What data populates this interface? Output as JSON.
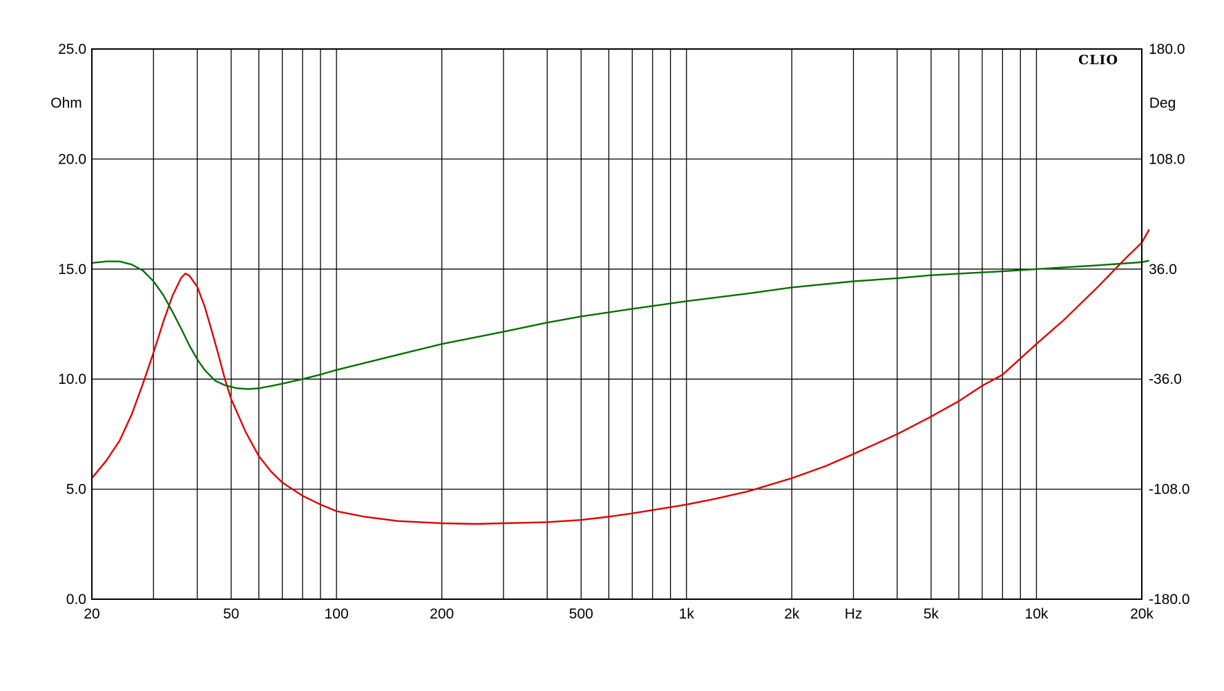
{
  "chart_data": {
    "type": "line",
    "brand": "CLIO",
    "x_axis": {
      "scale": "log",
      "range": [
        20,
        20000
      ],
      "unit_label": "Hz",
      "unit_label_position": 3000,
      "tick_labels": [
        {
          "value": 20,
          "label": "20"
        },
        {
          "value": 50,
          "label": "50"
        },
        {
          "value": 100,
          "label": "100"
        },
        {
          "value": 200,
          "label": "200"
        },
        {
          "value": 500,
          "label": "500"
        },
        {
          "value": 1000,
          "label": "1k"
        },
        {
          "value": 2000,
          "label": "2k"
        },
        {
          "value": 5000,
          "label": "5k"
        },
        {
          "value": 10000,
          "label": "10k"
        },
        {
          "value": 20000,
          "label": "20k"
        }
      ],
      "gridlines": [
        20,
        30,
        40,
        50,
        60,
        70,
        80,
        90,
        100,
        200,
        300,
        400,
        500,
        600,
        700,
        800,
        900,
        1000,
        2000,
        3000,
        4000,
        5000,
        6000,
        7000,
        8000,
        9000,
        10000,
        20000
      ]
    },
    "y_left": {
      "unit": "Ohm",
      "range": [
        0,
        25
      ],
      "ticks": [
        {
          "value": 0,
          "label": "0.0"
        },
        {
          "value": 5,
          "label": "5.0"
        },
        {
          "value": 10,
          "label": "10.0"
        },
        {
          "value": 15,
          "label": "15.0"
        },
        {
          "value": 20,
          "label": "20.0"
        },
        {
          "value": 25,
          "label": "25.0"
        }
      ]
    },
    "y_right": {
      "unit": "Deg",
      "range": [
        -180,
        180
      ],
      "ticks": [
        {
          "value": -180,
          "label": "-180.0"
        },
        {
          "value": -108,
          "label": "-108.0"
        },
        {
          "value": -36,
          "label": "-36.0"
        },
        {
          "value": 36,
          "label": "36.0"
        },
        {
          "value": 108,
          "label": "108.0"
        },
        {
          "value": 180,
          "label": "180.0"
        }
      ]
    },
    "grid": true,
    "series": [
      {
        "axis": "left",
        "color": "#e00000",
        "points": [
          [
            20,
            5.5
          ],
          [
            22,
            6.3
          ],
          [
            24,
            7.2
          ],
          [
            26,
            8.4
          ],
          [
            28,
            9.8
          ],
          [
            30,
            11.2
          ],
          [
            32,
            12.6
          ],
          [
            34,
            13.8
          ],
          [
            36,
            14.6
          ],
          [
            37,
            14.8
          ],
          [
            38,
            14.7
          ],
          [
            40,
            14.2
          ],
          [
            42,
            13.3
          ],
          [
            44,
            12.2
          ],
          [
            46,
            11.1
          ],
          [
            48,
            10.0
          ],
          [
            50,
            9.1
          ],
          [
            55,
            7.6
          ],
          [
            60,
            6.5
          ],
          [
            65,
            5.8
          ],
          [
            70,
            5.3
          ],
          [
            80,
            4.7
          ],
          [
            90,
            4.3
          ],
          [
            100,
            4.0
          ],
          [
            120,
            3.75
          ],
          [
            150,
            3.55
          ],
          [
            200,
            3.45
          ],
          [
            250,
            3.42
          ],
          [
            300,
            3.45
          ],
          [
            400,
            3.5
          ],
          [
            500,
            3.6
          ],
          [
            600,
            3.75
          ],
          [
            700,
            3.9
          ],
          [
            800,
            4.05
          ],
          [
            1000,
            4.3
          ],
          [
            1200,
            4.55
          ],
          [
            1500,
            4.9
          ],
          [
            2000,
            5.5
          ],
          [
            2500,
            6.05
          ],
          [
            3000,
            6.6
          ],
          [
            4000,
            7.5
          ],
          [
            5000,
            8.3
          ],
          [
            6000,
            9.0
          ],
          [
            7000,
            9.7
          ],
          [
            8000,
            10.2
          ],
          [
            10000,
            11.6
          ],
          [
            12000,
            12.7
          ],
          [
            15000,
            14.2
          ],
          [
            18000,
            15.5
          ],
          [
            20000,
            16.2
          ],
          [
            21000,
            16.8
          ]
        ]
      },
      {
        "axis": "right",
        "color": "#007000",
        "points": [
          [
            20,
            40
          ],
          [
            22,
            41
          ],
          [
            24,
            41
          ],
          [
            26,
            39
          ],
          [
            28,
            35
          ],
          [
            30,
            28
          ],
          [
            32,
            19
          ],
          [
            34,
            8
          ],
          [
            36,
            -3
          ],
          [
            38,
            -14
          ],
          [
            40,
            -23
          ],
          [
            42,
            -30
          ],
          [
            45,
            -37
          ],
          [
            48,
            -40
          ],
          [
            52,
            -42
          ],
          [
            56,
            -42.5
          ],
          [
            60,
            -42
          ],
          [
            65,
            -40.5
          ],
          [
            70,
            -39
          ],
          [
            80,
            -36
          ],
          [
            90,
            -33
          ],
          [
            100,
            -30
          ],
          [
            150,
            -20
          ],
          [
            200,
            -13
          ],
          [
            300,
            -5
          ],
          [
            400,
            1
          ],
          [
            500,
            5
          ],
          [
            700,
            10
          ],
          [
            1000,
            15
          ],
          [
            1500,
            20
          ],
          [
            2000,
            24
          ],
          [
            3000,
            28
          ],
          [
            4000,
            30
          ],
          [
            5000,
            32
          ],
          [
            6000,
            33
          ],
          [
            8000,
            34.5
          ],
          [
            10000,
            36
          ],
          [
            15000,
            38.5
          ],
          [
            20000,
            40.5
          ],
          [
            21000,
            41.5
          ]
        ]
      }
    ]
  }
}
